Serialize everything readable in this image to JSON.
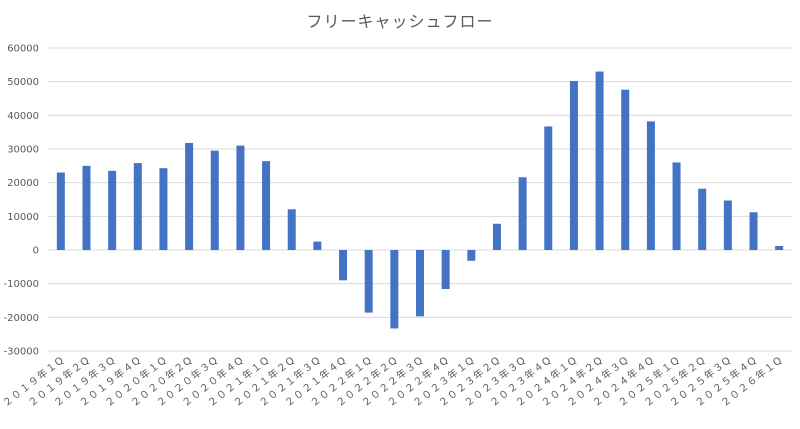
{
  "chart_data": {
    "type": "bar",
    "title": "フリーキャッシュフロー",
    "categories": [
      "２０１９年１Q",
      "２０１９年２Q",
      "２０１９年３Q",
      "２０１９年４Q",
      "２０２０年１Q",
      "２０２０年２Q",
      "２０２０年３Q",
      "２０２０年４Q",
      "２０２１年１Q",
      "２０２１年２Q",
      "２０２１年３Q",
      "２０２１年４Q",
      "２０２２年１Q",
      "２０２２年２Q",
      "２０２２年３Q",
      "２０２２年４Q",
      "２０２３年１Q",
      "２０２３年２Q",
      "２０２３年３Q",
      "２０２３年４Q",
      "２０２４年１Q",
      "２０２４年２Q",
      "２０２４年３Q",
      "２０２４年４Q",
      "２０２５年１Q",
      "２０２５年２Q",
      "２０２５年３Q",
      "２０２５年４Q",
      "２０２６年１Q"
    ],
    "values": [
      23000,
      25000,
      23500,
      25800,
      24300,
      31800,
      29500,
      31000,
      26400,
      12100,
      2500,
      -9000,
      -18600,
      -23300,
      -19700,
      -11600,
      -3200,
      7800,
      21600,
      36700,
      50200,
      53000,
      47600,
      38200,
      26000,
      18200,
      14700,
      11200,
      1200
    ],
    "ylim": [
      -30000,
      60000
    ],
    "yticks": [
      60000,
      50000,
      40000,
      30000,
      20000,
      10000,
      0,
      -10000,
      -20000,
      -30000
    ],
    "grid": true,
    "legend": "none",
    "colors": {
      "bar": "#4472C4",
      "grid": "#D9D9D9",
      "text": "#595959"
    }
  }
}
